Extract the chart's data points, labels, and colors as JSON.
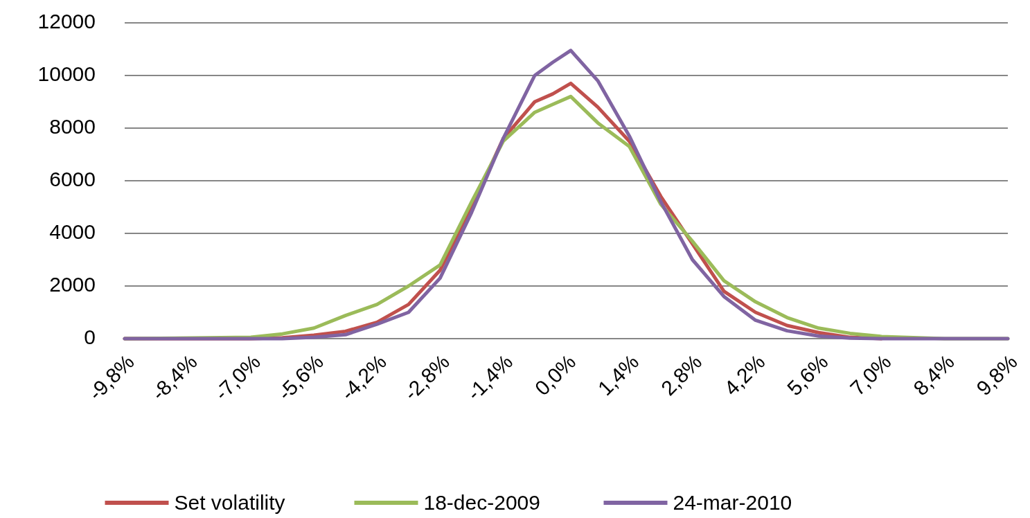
{
  "chart_data": {
    "type": "line",
    "xlim": [
      -9.8,
      9.8
    ],
    "ylim": [
      0,
      12000
    ],
    "xticks": [
      {
        "value": -9.8,
        "label": "-9,8%"
      },
      {
        "value": -8.4,
        "label": "-8,4%"
      },
      {
        "value": -7,
        "label": "-7,0%"
      },
      {
        "value": -5.6,
        "label": "-5,6%"
      },
      {
        "value": -4.2,
        "label": "-4,2%"
      },
      {
        "value": -2.8,
        "label": "-2,8%"
      },
      {
        "value": -1.4,
        "label": "-1,4%"
      },
      {
        "value": 0,
        "label": "0,0%"
      },
      {
        "value": 1.4,
        "label": "1,4%"
      },
      {
        "value": 2.8,
        "label": "2,8%"
      },
      {
        "value": 4.2,
        "label": "4,2%"
      },
      {
        "value": 5.6,
        "label": "5,6%"
      },
      {
        "value": 7,
        "label": "7,0%"
      },
      {
        "value": 8.4,
        "label": "8,4%"
      },
      {
        "value": 9.8,
        "label": "9,8%"
      }
    ],
    "yticks": [
      0,
      2000,
      4000,
      6000,
      8000,
      10000,
      12000
    ],
    "grid": "y",
    "legend": "bottom",
    "marker": "none",
    "line_style": "solid",
    "x": [
      -9.8,
      -7,
      -6.3,
      -5.6,
      -4.9,
      -4.2,
      -3.5,
      -2.8,
      -2.1,
      -1.4,
      -0.7,
      -0.3,
      0.1,
      0.7,
      1.4,
      2.1,
      2.8,
      3.5,
      4.2,
      4.9,
      5.6,
      6.3,
      7,
      8.4,
      9.8
    ],
    "series": [
      {
        "name": "Set volatility",
        "color": "#c0504d",
        "values": [
          0,
          0,
          30,
          130,
          280,
          620,
          1300,
          2600,
          5000,
          7600,
          9000,
          9300,
          9700,
          8800,
          7500,
          5400,
          3600,
          1800,
          1000,
          500,
          230,
          50,
          0,
          null,
          null
        ]
      },
      {
        "name": "18-dec-2009",
        "color": "#9bbb59",
        "values": [
          0,
          50,
          180,
          400,
          880,
          1300,
          2000,
          2800,
          5200,
          7500,
          8600,
          8900,
          9200,
          8200,
          7300,
          5100,
          3700,
          2200,
          1400,
          800,
          400,
          200,
          80,
          0,
          0
        ]
      },
      {
        "name": "24-mar-2010",
        "color": "#8064a2",
        "values": [
          0,
          0,
          0,
          50,
          150,
          550,
          1000,
          2300,
          4800,
          7600,
          10000,
          10500,
          10950,
          9800,
          7700,
          5200,
          3000,
          1600,
          700,
          300,
          100,
          20,
          0,
          0,
          0
        ]
      }
    ]
  }
}
